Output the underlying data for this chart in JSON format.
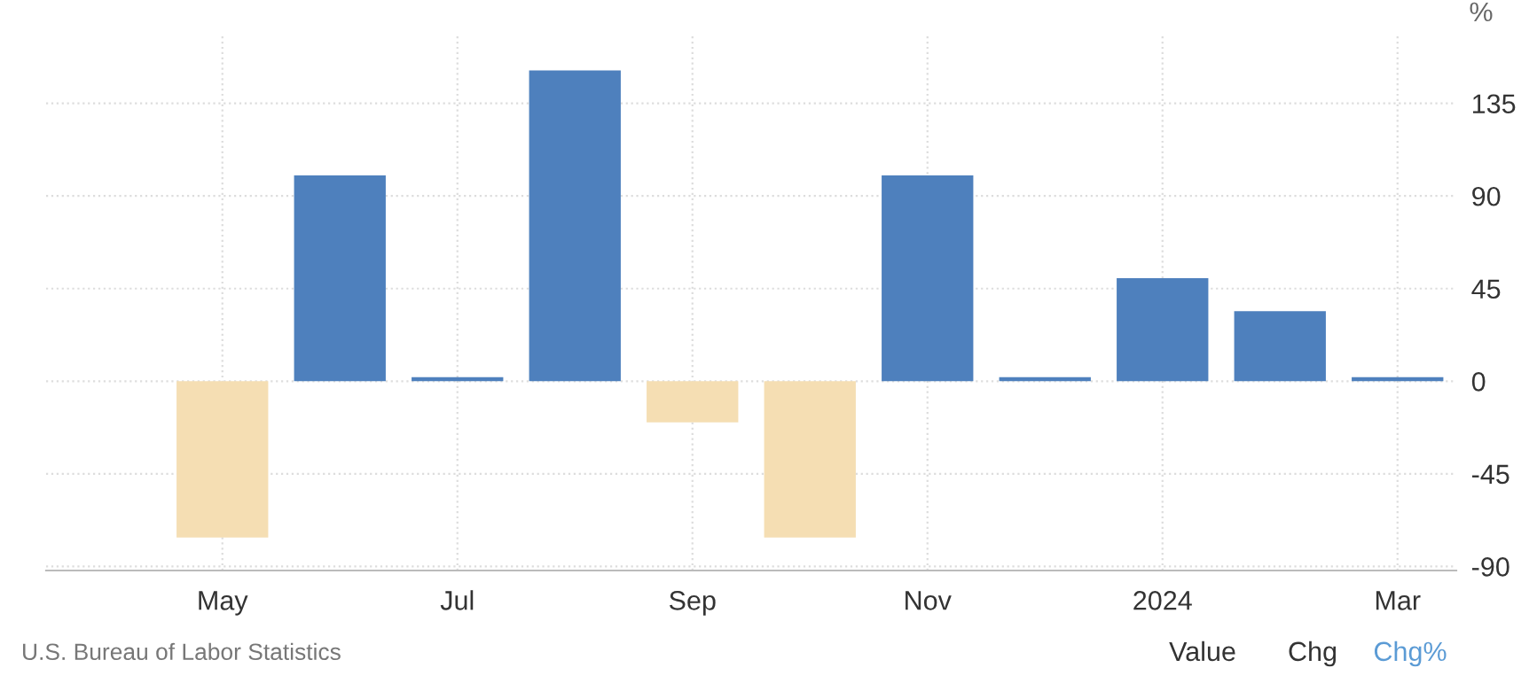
{
  "chart_data": {
    "type": "bar",
    "categories": [
      "May",
      null,
      "Jul",
      null,
      "Sep",
      null,
      "Nov",
      null,
      "2024",
      null,
      "Mar"
    ],
    "values": [
      -76,
      100,
      2,
      151,
      -20,
      -76,
      100,
      2,
      50,
      34,
      2
    ],
    "colors": [
      "#f5deb3",
      "#4e80bd",
      "#4e80bd",
      "#4e80bd",
      "#f5deb3",
      "#f5deb3",
      "#4e80bd",
      "#4e80bd",
      "#4e80bd",
      "#4e80bd",
      "#4e80bd"
    ],
    "ylabel": "%",
    "ylim": [
      -92,
      168
    ],
    "yticks": [
      -90,
      -45,
      0,
      45,
      90,
      135
    ],
    "grid": true,
    "annotations": [
      "U.S. Bureau of Labor Statistics",
      "Value",
      "Chg",
      "Chg%"
    ]
  }
}
